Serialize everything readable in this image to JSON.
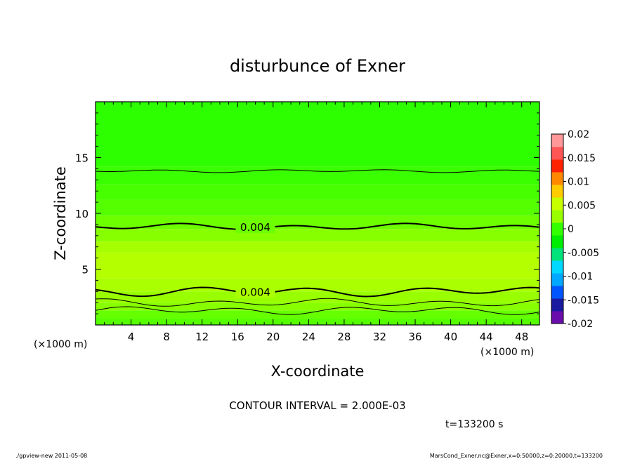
{
  "chart_data": {
    "type": "heatmap",
    "title": "disturbunce of Exner",
    "xlabel": "X-coordinate",
    "ylabel": "Z-coordinate",
    "x_unit": "(×1000 m)",
    "y_unit": "(×1000 m)",
    "xlim": [
      0,
      50
    ],
    "ylim": [
      0,
      20
    ],
    "x_ticks": [
      4,
      8,
      12,
      16,
      20,
      24,
      28,
      32,
      36,
      40,
      44,
      48
    ],
    "y_ticks": [
      5,
      10,
      15
    ],
    "contour_interval_label": "CONTOUR INTERVAL = 2.000E-03",
    "time_label": "t=133200 s",
    "colorbar": {
      "ticks": [
        "0.02",
        "0.015",
        "0.01",
        "0.005",
        "0",
        "-0.005",
        "-0.01",
        "-0.015",
        "-0.02"
      ],
      "range": [
        -0.02,
        0.02
      ],
      "colors": [
        "#6a0dad",
        "#1a1aa0",
        "#0055ff",
        "#00a8ff",
        "#00d8ff",
        "#00e27a",
        "#00ee00",
        "#33ff00",
        "#99ff00",
        "#c8ff00",
        "#ffcc00",
        "#ff8800",
        "#ff2200",
        "#ff5555",
        "#ff9999"
      ]
    },
    "field_bands": [
      {
        "z": [
          0,
          0.6
        ],
        "color": "#55ff00"
      },
      {
        "z": [
          0.6,
          1.3
        ],
        "color": "#66ff00"
      },
      {
        "z": [
          1.3,
          2.0
        ],
        "color": "#88ff00"
      },
      {
        "z": [
          2.0,
          3.0
        ],
        "color": "#99ff00"
      },
      {
        "z": [
          3.0,
          4.2
        ],
        "color": "#aaff00"
      },
      {
        "z": [
          4.2,
          6.5
        ],
        "color": "#b4ff00"
      },
      {
        "z": [
          6.5,
          7.5
        ],
        "color": "#a6ff00"
      },
      {
        "z": [
          7.5,
          8.6
        ],
        "color": "#88ff00"
      },
      {
        "z": [
          8.6,
          9.8
        ],
        "color": "#6dff00"
      },
      {
        "z": [
          9.8,
          11.2
        ],
        "color": "#55ff00"
      },
      {
        "z": [
          11.2,
          12.6
        ],
        "color": "#48ff00"
      },
      {
        "z": [
          12.6,
          14.2
        ],
        "color": "#3aff00"
      },
      {
        "z": [
          14.2,
          20.0
        ],
        "color": "#2eff00"
      }
    ],
    "contours": [
      {
        "name": "c1",
        "z": 1.3,
        "bold": false,
        "amp": 0.25,
        "label": ""
      },
      {
        "name": "c2",
        "z": 2.0,
        "bold": false,
        "amp": 0.25,
        "label": ""
      },
      {
        "name": "c3",
        "z": 3.0,
        "bold": true,
        "amp": 0.3,
        "label": "0.004",
        "label_x": 18
      },
      {
        "name": "c4",
        "z": 8.8,
        "bold": true,
        "amp": 0.2,
        "label": "0.004",
        "label_x": 18
      },
      {
        "name": "c5",
        "z": 13.8,
        "bold": false,
        "amp": 0.1,
        "label": ""
      }
    ]
  },
  "footer": {
    "left": "./gpview-new   2011-05-08",
    "right": "MarsCond_Exner.nc@Exner,x=0:50000,z=0:20000,t=133200"
  }
}
